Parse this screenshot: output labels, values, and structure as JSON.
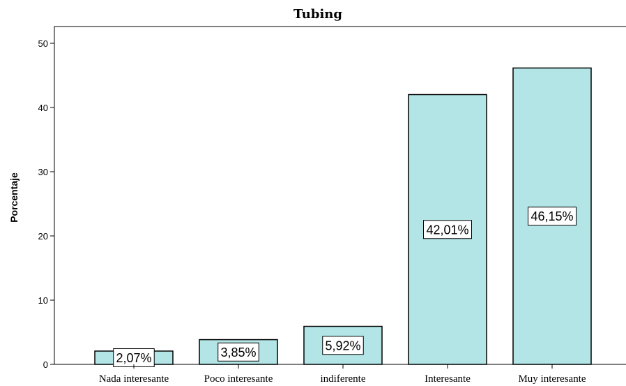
{
  "chart_data": {
    "type": "bar",
    "title": "Tubing",
    "xlabel": "",
    "ylabel": "Porcentaje",
    "categories": [
      "Nada interesante",
      "Poco interesante",
      "indiferente",
      "Interesante",
      "Muy interesante"
    ],
    "values": [
      2.07,
      3.85,
      5.92,
      42.01,
      46.15
    ],
    "data_labels": [
      "2,07%",
      "3,85%",
      "5,92%",
      "42,01%",
      "46,15%"
    ],
    "ylim": [
      0,
      50
    ],
    "yticks": [
      0,
      10,
      20,
      30,
      40,
      50
    ],
    "ytick_labels": [
      "0",
      "10",
      "20",
      "30",
      "40",
      "50"
    ],
    "grid": false,
    "legend": "none",
    "colors": {
      "bar_fill": "#b3e5e6",
      "bar_stroke": "#000000",
      "label_box": "#ffffff"
    }
  }
}
